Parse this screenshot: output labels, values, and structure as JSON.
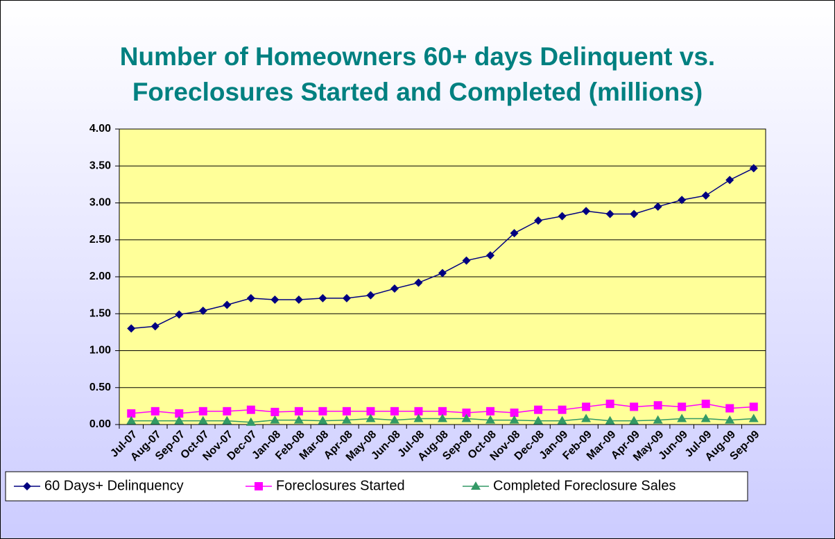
{
  "chart_data": {
    "type": "line",
    "title": [
      "Number of Homeowners 60+ days Delinquent vs.",
      "Foreclosures Started and Completed (millions)"
    ],
    "categories": [
      "Jul-07",
      "Aug-07",
      "Sep-07",
      "Oct-07",
      "Nov-07",
      "Dec-07",
      "Jan-08",
      "Feb-08",
      "Mar-08",
      "Apr-08",
      "May-08",
      "Jun-08",
      "Jul-08",
      "Aug-08",
      "Sep-08",
      "Oct-08",
      "Nov-08",
      "Dec-08",
      "Jan-09",
      "Feb-09",
      "Mar-09",
      "Apr-09",
      "May-09",
      "Jun-09",
      "Jul-09",
      "Aug-09",
      "Sep-09"
    ],
    "series": [
      {
        "name": "60 Days+ Delinquency",
        "color": "#000080",
        "marker": "diamond",
        "values": [
          1.3,
          1.33,
          1.49,
          1.54,
          1.62,
          1.71,
          1.69,
          1.69,
          1.71,
          1.71,
          1.75,
          1.84,
          1.92,
          2.05,
          2.22,
          2.29,
          2.59,
          2.76,
          2.82,
          2.89,
          2.85,
          2.85,
          2.95,
          3.04,
          3.1,
          3.31,
          3.47
        ]
      },
      {
        "name": "Foreclosures Started",
        "color": "#ff00ff",
        "marker": "square",
        "values": [
          0.15,
          0.18,
          0.15,
          0.18,
          0.18,
          0.2,
          0.17,
          0.18,
          0.18,
          0.18,
          0.18,
          0.18,
          0.18,
          0.18,
          0.16,
          0.18,
          0.16,
          0.2,
          0.2,
          0.24,
          0.28,
          0.24,
          0.26,
          0.24,
          0.28,
          0.22,
          0.24
        ]
      },
      {
        "name": "Completed Foreclosure Sales",
        "color": "#339966",
        "marker": "triangle",
        "values": [
          0.05,
          0.05,
          0.05,
          0.05,
          0.05,
          0.03,
          0.06,
          0.06,
          0.05,
          0.06,
          0.08,
          0.06,
          0.08,
          0.08,
          0.08,
          0.06,
          0.06,
          0.05,
          0.05,
          0.08,
          0.05,
          0.05,
          0.06,
          0.08,
          0.08,
          0.06,
          0.08
        ]
      }
    ],
    "ylim": [
      0,
      4
    ],
    "yticks": [
      {
        "value": 0,
        "label": "0.00"
      },
      {
        "value": 0.5,
        "label": "0.50"
      },
      {
        "value": 1,
        "label": "1.00"
      },
      {
        "value": 1.5,
        "label": "1.50"
      },
      {
        "value": 2,
        "label": "2.00"
      },
      {
        "value": 2.5,
        "label": "2.50"
      },
      {
        "value": 3,
        "label": "3.00"
      },
      {
        "value": 3.5,
        "label": "3.50"
      },
      {
        "value": 4,
        "label": "4.00"
      }
    ],
    "grid": true,
    "legend": "bottom",
    "plot_color": "#ffff99"
  }
}
